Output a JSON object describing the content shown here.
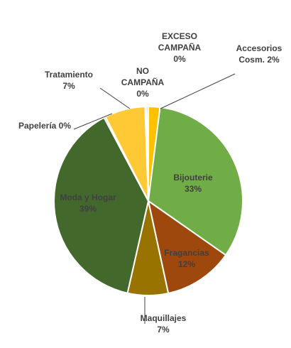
{
  "chart_data": {
    "type": "pie",
    "title": "",
    "slices": [
      {
        "name": "Accesorios Cosm.",
        "label_lines": [
          "Accesorios",
          "Cosm. 2%"
        ],
        "value": 2,
        "color": "#ffc000"
      },
      {
        "name": "Bijouterie",
        "label_lines": [
          "Bijouterie",
          "33%"
        ],
        "value": 33,
        "color": "#70ad47"
      },
      {
        "name": "Fragancias",
        "label_lines": [
          "Fragancias",
          "12%"
        ],
        "value": 12,
        "color": "#9e480e"
      },
      {
        "name": "Maquillajes",
        "label_lines": [
          "Maquillajes",
          "7%"
        ],
        "value": 7,
        "color": "#997300"
      },
      {
        "name": "Moda y Hogar",
        "label_lines": [
          "Moda y Hogar",
          "39%"
        ],
        "value": 39,
        "color": "#43682b"
      },
      {
        "name": "Papelería",
        "label_lines": [
          "Papelería 0%"
        ],
        "value": 0,
        "color": "#636363"
      },
      {
        "name": "Tratamiento",
        "label_lines": [
          "Tratamiento",
          "7%"
        ],
        "value": 7,
        "color": "#ffc936"
      },
      {
        "name": "NO CAMPAÑA",
        "label_lines": [
          "NO",
          "CAMPAÑA",
          "0%"
        ],
        "value": 0,
        "color": "#a5a5a5"
      },
      {
        "name": "EXCESO CAMPAÑA",
        "label_lines": [
          "EXCESO",
          "CAMPAÑA",
          "0%"
        ],
        "value": 0,
        "color": "#5b9bd5"
      }
    ],
    "legend": "none"
  }
}
